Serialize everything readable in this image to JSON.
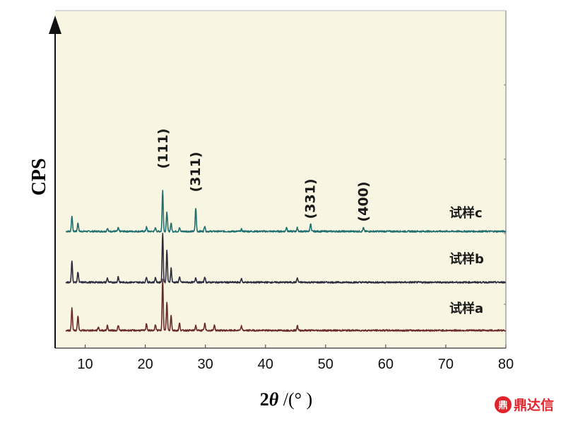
{
  "chart_data": {
    "type": "line",
    "title": "",
    "xlabel_prefix": "2",
    "xlabel_theta": "θ",
    "xlabel_suffix": " /(°  )",
    "ylabel": "CPS",
    "xlim": [
      5,
      80
    ],
    "xticks": [
      10,
      20,
      30,
      40,
      50,
      60,
      70,
      80
    ],
    "grid": false,
    "y_axis_arrow": true,
    "plot_background": "#f8f6e2",
    "peak_labels": [
      {
        "text": "(111)",
        "x": 23.0
      },
      {
        "text": "(311)",
        "x": 28.4
      },
      {
        "text": "(331)",
        "x": 47.5
      },
      {
        "text": "(400)",
        "x": 56.3
      }
    ],
    "series": [
      {
        "name": "试样c",
        "color": "#1f6f6f",
        "peaks": [
          [
            7.8,
            22
          ],
          [
            8.8,
            12
          ],
          [
            13.7,
            4
          ],
          [
            15.5,
            5
          ],
          [
            20.2,
            6
          ],
          [
            21.7,
            5
          ],
          [
            22.9,
            58
          ],
          [
            23.6,
            28
          ],
          [
            24.3,
            12
          ],
          [
            25.7,
            5
          ],
          [
            28.4,
            33
          ],
          [
            29.9,
            8
          ],
          [
            36.0,
            3
          ],
          [
            43.5,
            6
          ],
          [
            45.3,
            5
          ],
          [
            47.5,
            11
          ],
          [
            56.3,
            5
          ]
        ]
      },
      {
        "name": "试样b",
        "color": "#2b2b40",
        "peaks": [
          [
            7.8,
            30
          ],
          [
            8.8,
            15
          ],
          [
            13.7,
            6
          ],
          [
            15.5,
            8
          ],
          [
            20.2,
            8
          ],
          [
            21.7,
            7
          ],
          [
            22.9,
            70
          ],
          [
            23.6,
            45
          ],
          [
            24.3,
            20
          ],
          [
            25.7,
            8
          ],
          [
            28.4,
            7
          ],
          [
            29.9,
            8
          ],
          [
            36.0,
            5
          ],
          [
            45.3,
            6
          ]
        ]
      },
      {
        "name": "试样a",
        "color": "#6b2a2a",
        "peaks": [
          [
            7.8,
            32
          ],
          [
            8.8,
            20
          ],
          [
            12.2,
            5
          ],
          [
            13.7,
            7
          ],
          [
            15.5,
            7
          ],
          [
            20.2,
            10
          ],
          [
            21.7,
            8
          ],
          [
            22.9,
            72
          ],
          [
            23.6,
            40
          ],
          [
            24.3,
            22
          ],
          [
            25.7,
            10
          ],
          [
            28.4,
            7
          ],
          [
            29.9,
            10
          ],
          [
            31.5,
            8
          ],
          [
            36.0,
            6
          ],
          [
            45.3,
            7
          ]
        ]
      }
    ]
  },
  "watermark": {
    "logo_glyph": "鼎",
    "text": "鼎达信"
  }
}
